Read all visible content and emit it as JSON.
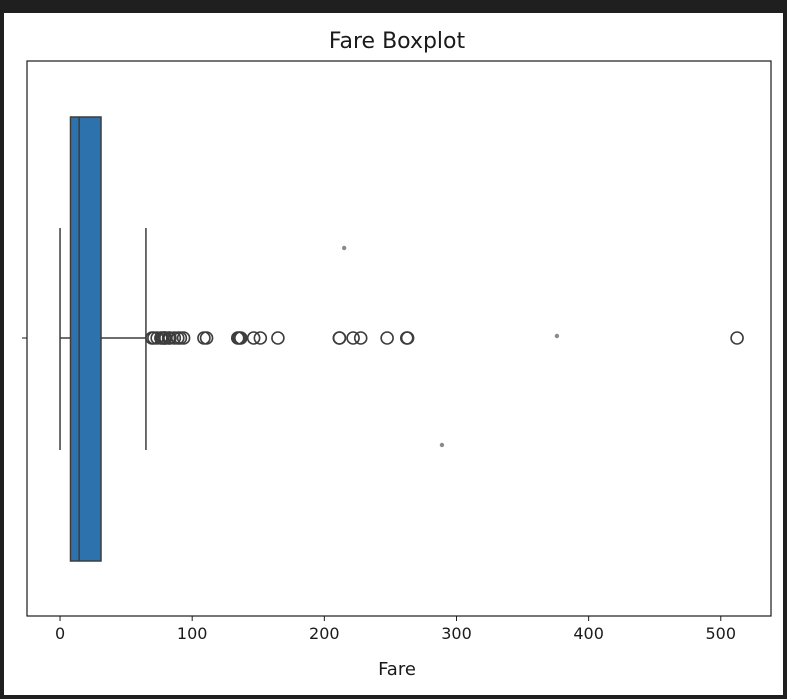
{
  "chart_data": {
    "type": "boxplot",
    "title": "Fare Boxplot",
    "xlabel": "Fare",
    "ylabel": "",
    "xlim": [
      -25,
      538
    ],
    "xticks": [
      0,
      100,
      200,
      300,
      400,
      500
    ],
    "grid": false,
    "box": {
      "whisker_low": 0,
      "q1": 7.91,
      "median": 14.45,
      "q3": 31.0,
      "whisker_high": 65.0,
      "color": "#2e72ad"
    },
    "outliers": [
      69.55,
      71.0,
      73.5,
      76.29,
      77.29,
      78.85,
      79.2,
      80.0,
      82.17,
      83.16,
      86.5,
      89.1,
      91.08,
      93.5,
      108.9,
      110.88,
      134.5,
      135.63,
      136.78,
      146.52,
      151.55,
      164.87,
      211.34,
      211.5,
      221.78,
      227.53,
      247.52,
      262.38,
      263.0,
      512.33
    ],
    "dots": [
      {
        "x": 215,
        "pos": "upper"
      },
      {
        "x": 376,
        "pos": "middle"
      },
      {
        "x": 289,
        "pos": "lower"
      }
    ]
  }
}
